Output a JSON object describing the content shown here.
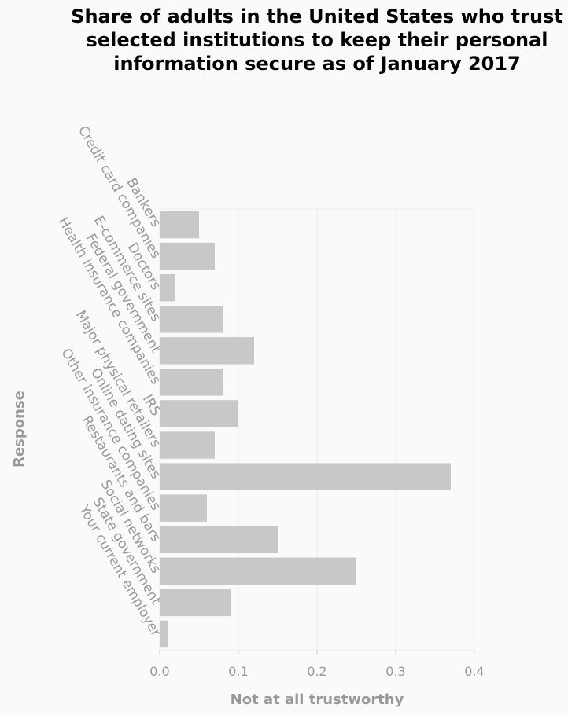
{
  "chart_data": {
    "type": "bar",
    "orientation": "horizontal",
    "title": "Share of adults in the United States who trust selected institutions to keep their personal information secure as of January 2017",
    "xlabel": "Not at all trustworthy",
    "ylabel": "Response",
    "xlim": [
      0,
      0.4
    ],
    "xticks": [
      "0.0",
      "0.1",
      "0.2",
      "0.3",
      "0.4"
    ],
    "grid": true,
    "categories": [
      "Bankers",
      "Credit card companies",
      "Doctors",
      "E-commerce sites",
      "Federal government",
      "Health insurance companies",
      "IRS",
      "Major physical retailers",
      "Online dating sites",
      "Other insurance companies",
      "Restaurants and bars",
      "Social networks",
      "State government",
      "Your current employer"
    ],
    "values": [
      0.05,
      0.07,
      0.02,
      0.08,
      0.12,
      0.08,
      0.1,
      0.07,
      0.37,
      0.06,
      0.15,
      0.25,
      0.09,
      0.01
    ],
    "colors": {
      "bar": "#c8c8c8",
      "grid": "#ececec",
      "axis_text": "#999999",
      "background": "#fafafa"
    }
  }
}
